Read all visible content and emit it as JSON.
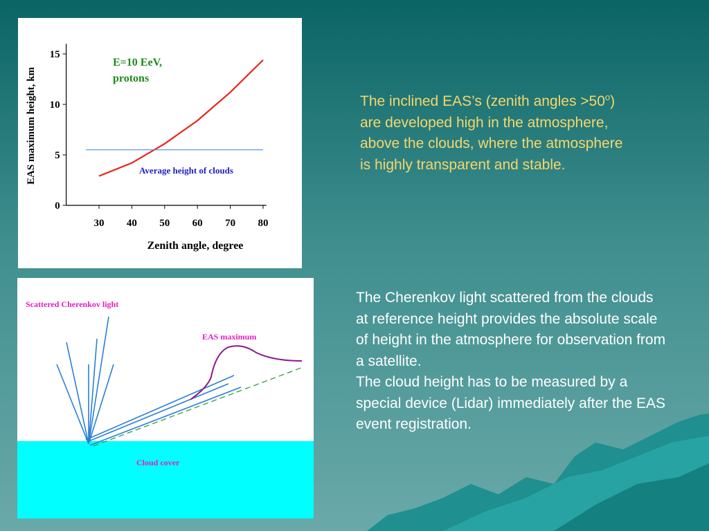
{
  "chart_data": {
    "type": "line",
    "xlabel": "Zenith angle, degree",
    "ylabel": "EAS maximum height, km",
    "annotations": [
      "E=10 EeV,",
      "protons",
      "Average height of clouds"
    ],
    "series": [
      {
        "color": "#e8241c",
        "x": [
          30,
          40,
          50,
          60,
          70,
          80
        ],
        "values": [
          2.9,
          4.2,
          6.1,
          8.4,
          11.2,
          14.4
        ]
      },
      {
        "color": "#4a90e2",
        "x": [
          26,
          80
        ],
        "values": [
          5.5,
          5.5
        ]
      }
    ],
    "xlim": [
      20,
      81
    ],
    "xticks": [
      30,
      40,
      50,
      60,
      70,
      80
    ],
    "ylim": [
      0,
      16
    ],
    "yticks": [
      0,
      5,
      10,
      15
    ]
  },
  "diagram": {
    "labels": [
      "Scattered Cherenkov light",
      "EAS maximum",
      "Cloud cover"
    ]
  },
  "text": {
    "first": [
      "The inclined EAS’s (zenith angles >50",
      "o",
      ") are developed high in the atmosphere, above the clouds, where the atmosphere is highly transparent and stable."
    ],
    "second": [
      "The Cherenkov light scattered from the clouds at reference height provides the absolute scale of height in the atmosphere for observation from a satellite.",
      "The cloud height has to be measured by a special device (Lidar) immediately after the EAS event registration."
    ]
  }
}
